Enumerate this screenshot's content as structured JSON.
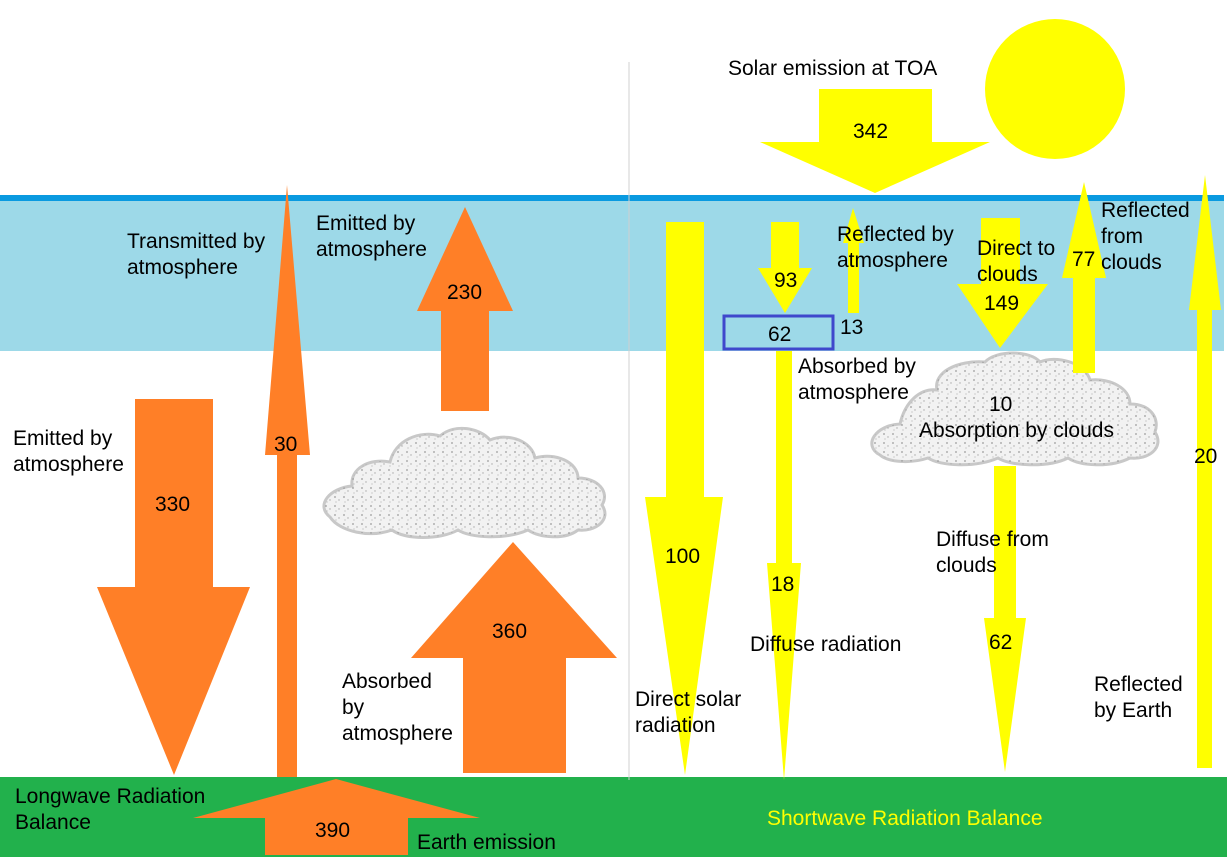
{
  "colors": {
    "atmosphere": "#9dd9e8",
    "toa_line": "#0a9ae0",
    "ground": "#22b14c",
    "longwave_arrow": "#ff7f27",
    "shortwave_arrow": "#ffff00",
    "sun": "#ffff00",
    "cloud_fill": "#f2f2f2",
    "cloud_outline": "#c8c8c8",
    "highlight_box": "#3f48cc"
  },
  "icons": [
    "sun-icon",
    "cloud-icon"
  ],
  "longwave": {
    "title_line1": "Longwave Radiation",
    "title_line2": "Balance",
    "earth_emission_label": "Earth emission",
    "earth_emission_value": "390",
    "emitted_down_label_line1": "Emitted by",
    "emitted_down_label_line2": "atmosphere",
    "emitted_down_value": "330",
    "transmitted_label_line1": "Transmitted by",
    "transmitted_label_line2": "atmosphere",
    "transmitted_value": "30",
    "emitted_up_label_line1": "Emitted by",
    "emitted_up_label_line2": "atmosphere",
    "emitted_up_value": "230",
    "absorbed_label_line1": "Absorbed",
    "absorbed_label_line2": "by",
    "absorbed_label_line3": "atmosphere",
    "absorbed_value": "360"
  },
  "shortwave": {
    "title": "Shortwave Radiation Balance",
    "toa_label": "Solar emission at TOA",
    "toa_value": "342",
    "direct_solar_label_line1": "Direct solar",
    "direct_solar_label_line2": "radiation",
    "direct_solar_value": "100",
    "diffuse_in_value": "93",
    "absorbed_atm_value": "62",
    "absorbed_atm_label_line1": "Absorbed by",
    "absorbed_atm_label_line2": "atmosphere",
    "diffuse_radiation_label": "Diffuse radiation",
    "diffuse_radiation_value": "18",
    "reflected_atm_label_line1": "Reflected by",
    "reflected_atm_label_line2": "atmosphere",
    "reflected_atm_value": "13",
    "direct_clouds_label_line1": "Direct to",
    "direct_clouds_label_line2": "clouds",
    "direct_clouds_value": "149",
    "reflected_clouds_label_line1": "Reflected",
    "reflected_clouds_label_line2": "from",
    "reflected_clouds_label_line3": "clouds",
    "reflected_clouds_value": "77",
    "absorption_clouds_value": "10",
    "absorption_clouds_label": "Absorption by clouds",
    "diffuse_clouds_label_line1": "Diffuse from",
    "diffuse_clouds_label_line2": "clouds",
    "diffuse_clouds_value": "62",
    "reflected_earth_label_line1": "Reflected",
    "reflected_earth_label_line2": "by Earth",
    "reflected_earth_value": "20"
  }
}
